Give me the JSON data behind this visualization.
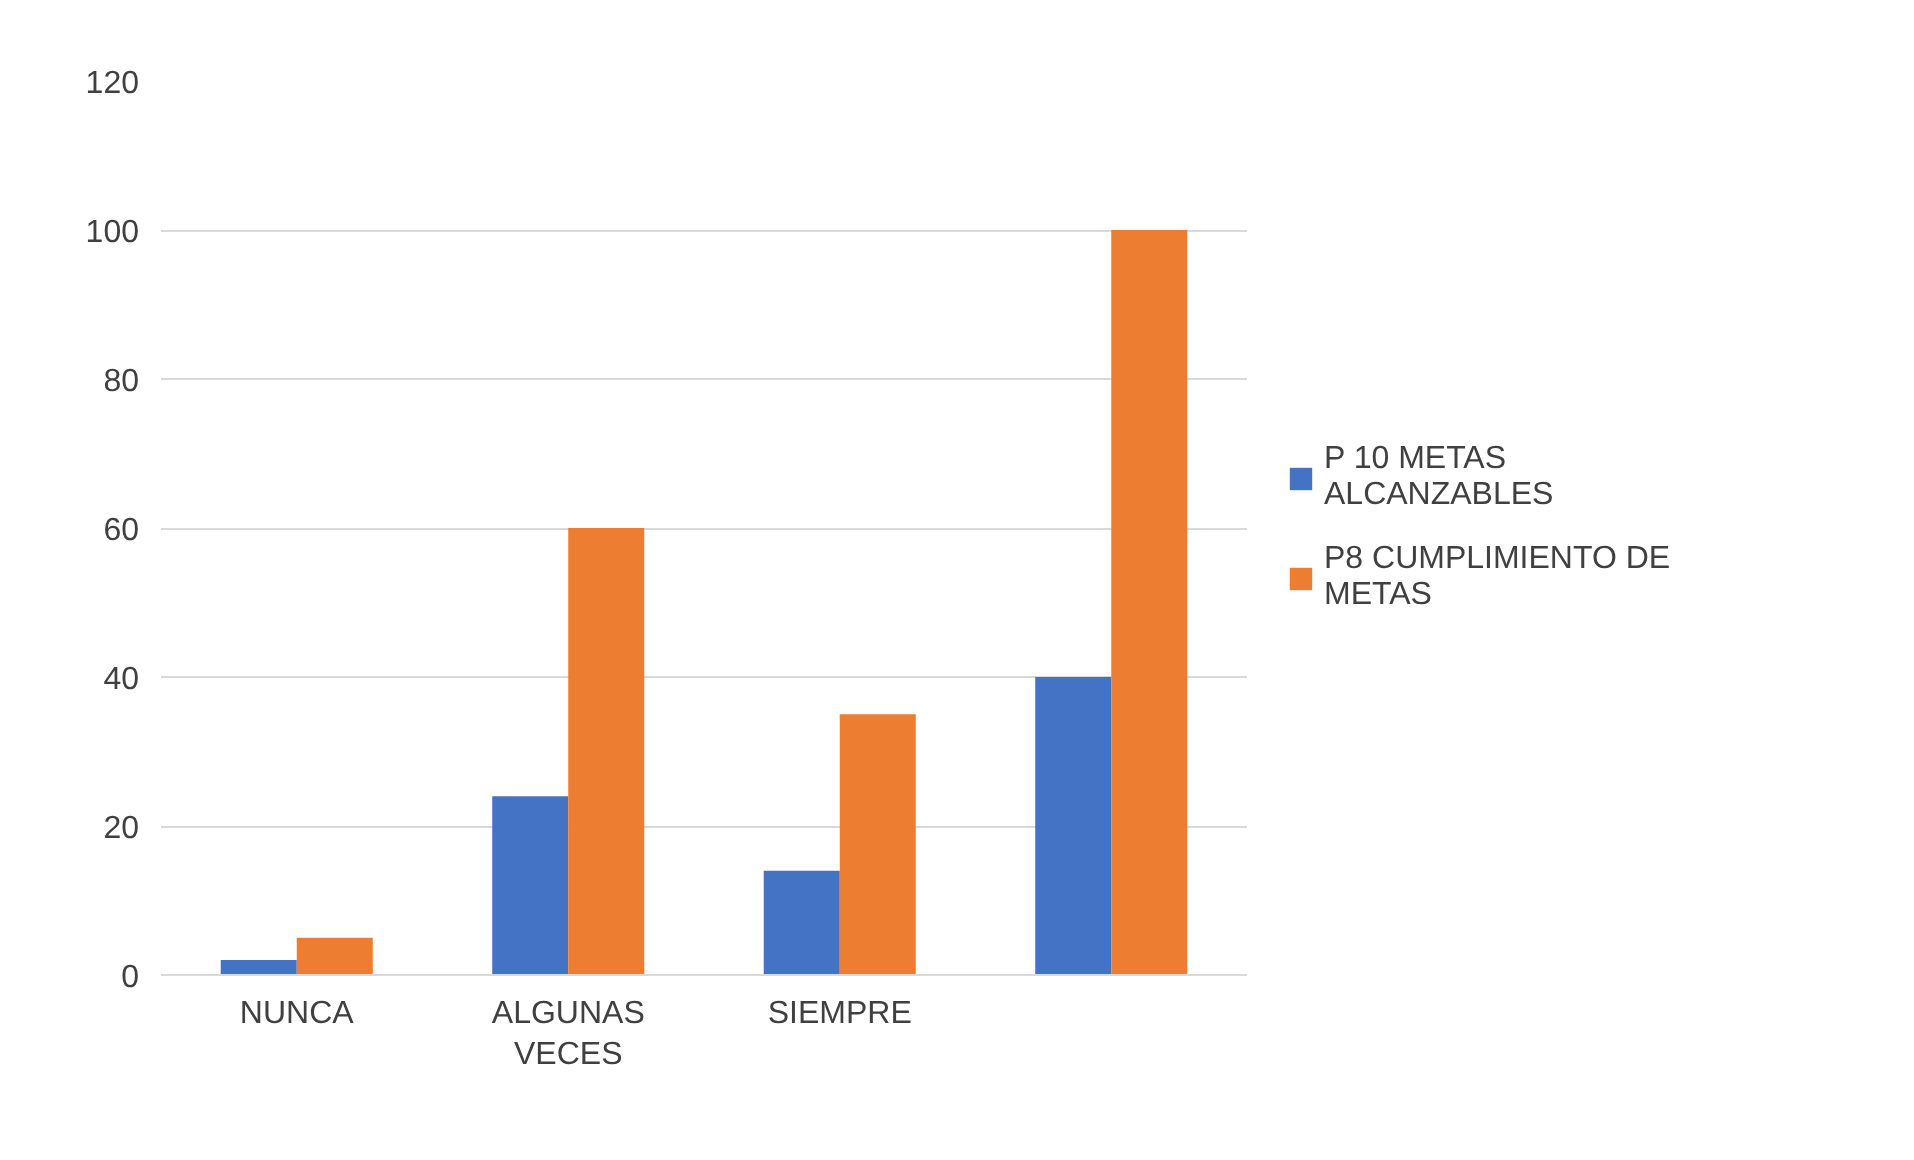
{
  "chart_data": {
    "type": "bar",
    "categories": [
      "NUNCA",
      "ALGUNAS VECES",
      "SIEMPRE",
      null
    ],
    "series": [
      {
        "name": "P 10 METAS ALCANZABLES",
        "color": "#4472c4",
        "values": [
          2,
          24,
          14,
          40
        ]
      },
      {
        "name": "P8 CUMPLIMIENTO DE METAS",
        "color": "#ed7d31",
        "values": [
          5,
          60,
          35,
          100
        ]
      }
    ],
    "ylim": [
      0,
      120
    ],
    "yticks": [
      0,
      20,
      40,
      60,
      80,
      100,
      120
    ],
    "grid": "y",
    "legend": "right"
  }
}
